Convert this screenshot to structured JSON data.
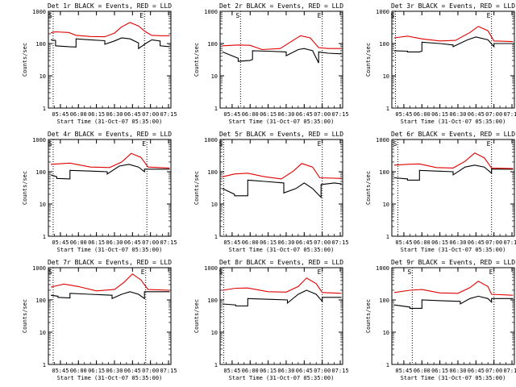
{
  "colors": {
    "events": "#000000",
    "lld": "#e00000",
    "frame": "#000000",
    "background": "#ffffff"
  },
  "chart_data": [
    {
      "type": "line",
      "title": "Det 1r BLACK = Events, RED = LLD",
      "ylabel": "Counts/sec",
      "xlabel": "Start Time (31-Oct-07 05:35:00)",
      "y_scale": "log",
      "ylim": [
        1,
        1000
      ],
      "y_tick_labels": [
        "1",
        "10",
        "100",
        "1000"
      ],
      "x_tick_labels": [
        "05:45",
        "06:00",
        "06:15",
        "06:30",
        "06:45",
        "07:00",
        "07:15"
      ],
      "series": [
        {
          "name": "Events",
          "x": [
            "05:37",
            "05:41",
            "05:41",
            "05:52",
            "05:58",
            "05:58",
            "06:10",
            "06:22",
            "06:22",
            "06:30",
            "06:36",
            "06:43",
            "06:50",
            "06:50",
            "06:56",
            "07:01",
            "07:08",
            "07:08",
            "07:16"
          ],
          "y": [
            130,
            125,
            85,
            80,
            78,
            140,
            130,
            122,
            95,
            120,
            150,
            140,
            105,
            70,
            100,
            130,
            120,
            85,
            80
          ]
        },
        {
          "name": "LLD",
          "x": [
            "05:37",
            "05:41",
            "05:52",
            "05:58",
            "06:10",
            "06:22",
            "06:30",
            "06:36",
            "06:43",
            "06:50",
            "06:56",
            "07:01",
            "07:08",
            "07:16"
          ],
          "y": [
            215,
            230,
            220,
            180,
            165,
            162,
            210,
            330,
            450,
            350,
            230,
            180,
            175,
            175
          ]
        }
      ],
      "markers": {
        "S": "05:39",
        "E": "06:55"
      }
    },
    {
      "type": "line",
      "title": "Det 2r BLACK = Events, RED = LLD",
      "ylabel": "Counts/sec",
      "xlabel": "Start Time (31-Oct-07 05:35:00)",
      "y_scale": "log",
      "ylim": [
        1,
        1000
      ],
      "y_tick_labels": [
        "1",
        "10",
        "100",
        "1000"
      ],
      "x_tick_labels": [
        "05:45",
        "06:00",
        "06:15",
        "06:30",
        "06:45",
        "07:00",
        "07:15"
      ],
      "series": [
        {
          "name": "Events",
          "x": [
            "05:37",
            "05:50",
            "05:50",
            "06:00",
            "06:02",
            "06:02",
            "06:15",
            "06:30",
            "06:30",
            "06:40",
            "06:45",
            "06:52",
            "06:57",
            "06:57",
            "07:05",
            "07:16"
          ],
          "y": [
            55,
            35,
            28,
            30,
            32,
            60,
            58,
            55,
            42,
            65,
            70,
            60,
            25,
            55,
            50,
            48
          ]
        },
        {
          "name": "LLD",
          "x": [
            "05:37",
            "05:50",
            "06:00",
            "06:10",
            "06:25",
            "06:35",
            "06:42",
            "06:50",
            "06:57",
            "07:05",
            "07:16"
          ],
          "y": [
            85,
            90,
            88,
            65,
            70,
            120,
            175,
            150,
            75,
            70,
            70
          ]
        }
      ],
      "markers": {
        "S": "05:52",
        "E": "07:00"
      }
    },
    {
      "type": "line",
      "title": "Det 3r BLACK = Events, RED = LLD",
      "ylabel": "Counts/sec",
      "xlabel": "Start Time (31-Oct-07 05:35:00)",
      "y_scale": "log",
      "ylim": [
        1,
        1000
      ],
      "y_tick_labels": [
        "1",
        "10",
        "100",
        "1000"
      ],
      "x_tick_labels": [
        "05:45",
        "06:00",
        "06:15",
        "06:30",
        "06:45",
        "07:00",
        "07:15"
      ],
      "series": [
        {
          "name": "Events",
          "x": [
            "05:37",
            "05:48",
            "05:48",
            "05:58",
            "06:00",
            "06:00",
            "06:15",
            "06:26",
            "06:26",
            "06:38",
            "06:45",
            "06:55",
            "07:00",
            "07:00",
            "07:16"
          ],
          "y": [
            60,
            58,
            55,
            55,
            58,
            110,
            100,
            90,
            80,
            130,
            160,
            130,
            80,
            100,
            100
          ]
        },
        {
          "name": "LLD",
          "x": [
            "05:37",
            "05:48",
            "06:00",
            "06:15",
            "06:28",
            "06:40",
            "06:47",
            "06:55",
            "07:00",
            "07:16"
          ],
          "y": [
            150,
            170,
            140,
            120,
            125,
            220,
            340,
            250,
            120,
            115
          ]
        }
      ],
      "markers": {
        "S": "05:38",
        "E": "06:58"
      }
    },
    {
      "type": "line",
      "title": "Det 4r BLACK = Events, RED = LLD",
      "ylabel": "Counts/sec",
      "xlabel": "Start Time (31-Oct-07 05:35:00)",
      "y_scale": "log",
      "ylim": [
        1,
        1000
      ],
      "y_tick_labels": [
        "1",
        "10",
        "100",
        "1000"
      ],
      "x_tick_labels": [
        "05:45",
        "06:00",
        "06:15",
        "06:30",
        "06:45",
        "07:00",
        "07:15"
      ],
      "series": [
        {
          "name": "Events",
          "x": [
            "05:37",
            "05:42",
            "05:42",
            "05:53",
            "05:53",
            "06:10",
            "06:24",
            "06:24",
            "06:34",
            "06:42",
            "06:50",
            "06:55",
            "06:55",
            "07:16"
          ],
          "y": [
            80,
            70,
            62,
            60,
            110,
            105,
            100,
            85,
            150,
            170,
            140,
            100,
            120,
            120
          ]
        },
        {
          "name": "LLD",
          "x": [
            "05:37",
            "05:53",
            "06:10",
            "06:26",
            "06:36",
            "06:44",
            "06:52",
            "06:58",
            "07:16"
          ],
          "y": [
            170,
            185,
            140,
            135,
            200,
            370,
            280,
            140,
            130
          ]
        }
      ],
      "markers": {
        "S": "05:39",
        "E": "06:57"
      }
    },
    {
      "type": "line",
      "title": "Det 5r BLACK = Events, RED = LLD",
      "ylabel": "Counts/sec",
      "xlabel": "Start Time (31-Oct-07 05:35:00)",
      "y_scale": "log",
      "ylim": [
        1,
        1000
      ],
      "y_tick_labels": [
        "1",
        "10",
        "100",
        "1000"
      ],
      "x_tick_labels": [
        "05:45",
        "06:00",
        "06:15",
        "06:30",
        "06:45",
        "07:00",
        "07:15"
      ],
      "series": [
        {
          "name": "Events",
          "x": [
            "05:37",
            "05:47",
            "05:47",
            "05:58",
            "05:58",
            "06:12",
            "06:28",
            "06:28",
            "06:38",
            "06:45",
            "06:52",
            "06:59",
            "06:59",
            "07:10",
            "07:16"
          ],
          "y": [
            30,
            20,
            18,
            18,
            55,
            50,
            45,
            22,
            30,
            45,
            30,
            16,
            40,
            45,
            42
          ]
        },
        {
          "name": "LLD",
          "x": [
            "05:37",
            "05:47",
            "05:58",
            "06:12",
            "06:26",
            "06:36",
            "06:43",
            "06:52",
            "06:58",
            "07:16"
          ],
          "y": [
            70,
            85,
            90,
            70,
            60,
            105,
            180,
            140,
            65,
            62
          ]
        }
      ],
      "markers": {
        "S": "05:38",
        "E": "07:00"
      }
    },
    {
      "type": "line",
      "title": "Det 6r BLACK = Events, RED = LLD",
      "ylabel": "Counts/sec",
      "xlabel": "Start Time (31-Oct-07 05:35:00)",
      "y_scale": "log",
      "ylim": [
        1,
        1000
      ],
      "y_tick_labels": [
        "1",
        "10",
        "100",
        "1000"
      ],
      "x_tick_labels": [
        "05:45",
        "06:00",
        "06:15",
        "06:30",
        "06:45",
        "07:00",
        "07:15"
      ],
      "series": [
        {
          "name": "Events",
          "x": [
            "05:37",
            "05:48",
            "05:48",
            "05:58",
            "05:58",
            "06:12",
            "06:26",
            "06:26",
            "06:36",
            "06:44",
            "06:52",
            "06:58",
            "06:58",
            "07:16"
          ],
          "y": [
            65,
            60,
            55,
            55,
            110,
            105,
            100,
            80,
            140,
            160,
            140,
            90,
            120,
            120
          ]
        },
        {
          "name": "LLD",
          "x": [
            "05:37",
            "05:48",
            "05:58",
            "06:12",
            "06:26",
            "06:36",
            "06:44",
            "06:52",
            "06:58",
            "07:16"
          ],
          "y": [
            160,
            170,
            175,
            135,
            130,
            210,
            380,
            270,
            130,
            125
          ]
        }
      ],
      "markers": {
        "S": "05:40",
        "E": "06:58"
      }
    },
    {
      "type": "line",
      "title": "Det 7r BLACK = Events, RED = LLD",
      "ylabel": "Counts/sec",
      "xlabel": "Start Time (31-Oct-07 05:35:00)",
      "y_scale": "log",
      "ylim": [
        1,
        1000
      ],
      "y_tick_labels": [
        "1",
        "10",
        "100",
        "1000"
      ],
      "x_tick_labels": [
        "05:45",
        "06:00",
        "06:15",
        "06:30",
        "06:45",
        "07:00",
        "07:15"
      ],
      "series": [
        {
          "name": "Events",
          "x": [
            "05:37",
            "05:43",
            "05:43",
            "05:53",
            "05:53",
            "06:10",
            "06:28",
            "06:28",
            "06:36",
            "06:43",
            "06:50",
            "06:55",
            "06:55",
            "07:16"
          ],
          "y": [
            140,
            130,
            120,
            115,
            160,
            150,
            140,
            110,
            150,
            180,
            150,
            110,
            180,
            180
          ]
        },
        {
          "name": "LLD",
          "x": [
            "05:37",
            "05:48",
            "06:00",
            "06:15",
            "06:30",
            "06:38",
            "06:45",
            "06:52",
            "06:58",
            "07:16"
          ],
          "y": [
            250,
            310,
            260,
            190,
            210,
            350,
            640,
            420,
            210,
            200
          ]
        }
      ],
      "markers": {
        "S": "05:39",
        "E": "06:56"
      }
    },
    {
      "type": "line",
      "title": "Det 8r BLACK = Events, RED = LLD",
      "ylabel": "Counts/sec",
      "xlabel": "Start Time (31-Oct-07 05:35:00)",
      "y_scale": "log",
      "ylim": [
        1,
        1000
      ],
      "y_tick_labels": [
        "1",
        "10",
        "100",
        "1000"
      ],
      "x_tick_labels": [
        "05:45",
        "06:00",
        "06:15",
        "06:30",
        "06:45",
        "07:00",
        "07:15"
      ],
      "series": [
        {
          "name": "Events",
          "x": [
            "05:37",
            "05:48",
            "05:48",
            "05:58",
            "05:58",
            "06:15",
            "06:31",
            "06:31",
            "06:40",
            "06:47",
            "06:55",
            "07:00",
            "07:00",
            "07:16"
          ],
          "y": [
            75,
            70,
            65,
            65,
            110,
            105,
            100,
            80,
            150,
            200,
            150,
            90,
            120,
            120
          ]
        },
        {
          "name": "LLD",
          "x": [
            "05:37",
            "05:48",
            "05:58",
            "06:15",
            "06:30",
            "06:40",
            "06:47",
            "06:55",
            "07:00",
            "07:16"
          ],
          "y": [
            200,
            230,
            235,
            180,
            175,
            260,
            480,
            320,
            170,
            160
          ]
        }
      ],
      "markers": {
        "S": "05:38",
        "E": "07:00"
      }
    },
    {
      "type": "line",
      "title": "Det 9r BLACK = Events, RED = LLD",
      "ylabel": "Counts/sec",
      "xlabel": "Start Time (31-Oct-07 05:35:00)",
      "y_scale": "log",
      "ylim": [
        1,
        1000
      ],
      "y_tick_labels": [
        "1",
        "10",
        "100",
        "1000"
      ],
      "x_tick_labels": [
        "05:45",
        "06:00",
        "06:15",
        "06:30",
        "06:45",
        "07:00",
        "07:15"
      ],
      "series": [
        {
          "name": "Events",
          "x": [
            "05:37",
            "05:50",
            "05:50",
            "06:00",
            "06:00",
            "06:15",
            "06:32",
            "06:32",
            "06:40",
            "06:47",
            "06:55",
            "06:58",
            "06:58",
            "07:16"
          ],
          "y": [
            70,
            60,
            55,
            55,
            100,
            95,
            90,
            75,
            110,
            130,
            110,
            85,
            110,
            110
          ]
        },
        {
          "name": "LLD",
          "x": [
            "05:37",
            "05:50",
            "06:00",
            "06:15",
            "06:30",
            "06:40",
            "06:47",
            "06:55",
            "06:58",
            "07:16"
          ],
          "y": [
            170,
            200,
            210,
            165,
            160,
            240,
            380,
            260,
            150,
            140
          ]
        }
      ],
      "markers": {
        "S": "05:52",
        "E": "07:00"
      }
    }
  ]
}
